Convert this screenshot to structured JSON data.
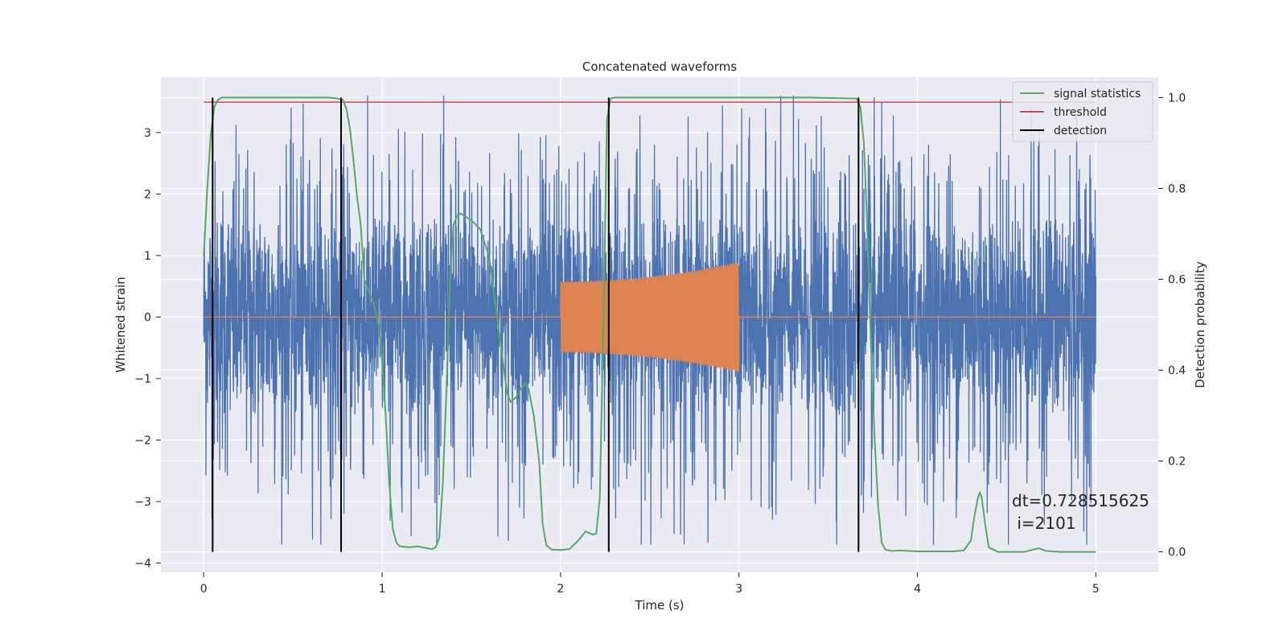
{
  "chart_data": {
    "type": "line",
    "title": "Concatenated waveforms",
    "xlabel": "Time (s)",
    "ylabel": "Whitened strain",
    "y2label": "Detection probability",
    "xlim": [
      -0.24,
      5.35
    ],
    "ylim": [
      -4.15,
      3.9
    ],
    "y2lim": [
      -0.045,
      1.045
    ],
    "xticks": [
      0,
      1,
      2,
      3,
      4,
      5
    ],
    "xtick_labels": [
      "0",
      "1",
      "2",
      "3",
      "4",
      "5"
    ],
    "yticks": [
      -4,
      -3,
      -2,
      -1,
      0,
      1,
      2,
      3
    ],
    "ytick_labels": [
      "−4",
      "−3",
      "−2",
      "−1",
      "0",
      "1",
      "2",
      "3"
    ],
    "y2ticks": [
      0.0,
      0.2,
      0.4,
      0.6,
      0.8,
      1.0
    ],
    "y2tick_labels": [
      "0.0",
      "0.2",
      "0.4",
      "0.6",
      "0.8",
      "1.0"
    ],
    "grid": true,
    "legend_position": "top-right",
    "colors": {
      "strain": "#4c72b0",
      "waveform": "#dd8452",
      "signal_statistics": "#55a868",
      "threshold": "#c44e52",
      "detection": "#000000",
      "axes_bg": "#eaeaf2",
      "grid": "#ffffff"
    },
    "strain_range": [
      0,
      5
    ],
    "waveform_range": [
      2.0,
      3.0
    ],
    "waveform_amplitude": [
      0.58,
      0.9
    ],
    "signal_statistics": {
      "name": "signal statistics",
      "x": [
        0.0,
        0.02,
        0.04,
        0.06,
        0.08,
        0.1,
        0.15,
        0.3,
        0.5,
        0.7,
        0.75,
        0.78,
        0.8,
        0.82,
        0.84,
        0.86,
        0.88,
        0.9,
        0.92,
        0.95,
        0.98,
        1.0,
        1.02,
        1.04,
        1.06,
        1.08,
        1.1,
        1.15,
        1.2,
        1.25,
        1.28,
        1.3,
        1.32,
        1.34,
        1.36,
        1.38,
        1.4,
        1.42,
        1.44,
        1.46,
        1.5,
        1.55,
        1.6,
        1.65,
        1.7,
        1.72,
        1.75,
        1.78,
        1.8,
        1.82,
        1.85,
        1.88,
        1.9,
        1.92,
        1.95,
        2.0,
        2.05,
        2.1,
        2.14,
        2.18,
        2.2,
        2.22,
        2.24,
        2.26,
        2.28,
        2.3,
        2.4,
        2.6,
        3.0,
        3.4,
        3.66,
        3.68,
        3.7,
        3.72,
        3.74,
        3.76,
        3.78,
        3.8,
        3.82,
        3.84,
        3.86,
        3.9,
        4.0,
        4.2,
        4.26,
        4.3,
        4.32,
        4.34,
        4.35,
        4.36,
        4.38,
        4.4,
        4.45,
        4.6,
        4.65,
        4.68,
        4.72,
        4.8,
        5.0
      ],
      "values": [
        0.65,
        0.8,
        0.92,
        0.98,
        0.995,
        1.0,
        1.0,
        1.0,
        1.0,
        1.0,
        0.998,
        0.995,
        0.975,
        0.93,
        0.86,
        0.78,
        0.72,
        0.6,
        0.58,
        0.55,
        0.5,
        0.42,
        0.3,
        0.15,
        0.05,
        0.02,
        0.012,
        0.01,
        0.012,
        0.008,
        0.006,
        0.01,
        0.03,
        0.15,
        0.35,
        0.6,
        0.72,
        0.74,
        0.745,
        0.74,
        0.73,
        0.71,
        0.65,
        0.5,
        0.35,
        0.33,
        0.34,
        0.36,
        0.37,
        0.36,
        0.3,
        0.2,
        0.06,
        0.015,
        0.005,
        0.004,
        0.006,
        0.025,
        0.045,
        0.038,
        0.04,
        0.12,
        0.5,
        0.95,
        0.998,
        1.0,
        1.0,
        1.0,
        1.0,
        1.0,
        0.998,
        0.98,
        0.9,
        0.7,
        0.45,
        0.25,
        0.1,
        0.02,
        0.005,
        0.003,
        0.002,
        0.003,
        0.001,
        0.001,
        0.003,
        0.025,
        0.08,
        0.12,
        0.13,
        0.12,
        0.06,
        0.01,
        0.0,
        0.0,
        0.005,
        0.008,
        0.002,
        0.0,
        0.0
      ]
    },
    "threshold": {
      "name": "threshold",
      "x": [
        0.0,
        5.0
      ],
      "values": [
        0.99,
        0.99
      ]
    },
    "detection": {
      "name": "detection",
      "x": [
        0.05,
        0.77,
        2.27,
        3.67
      ],
      "y2_range": [
        0.0,
        1.0
      ]
    },
    "annotation": {
      "line1": "dt=0.728515625",
      "line2": " i=2101"
    }
  }
}
